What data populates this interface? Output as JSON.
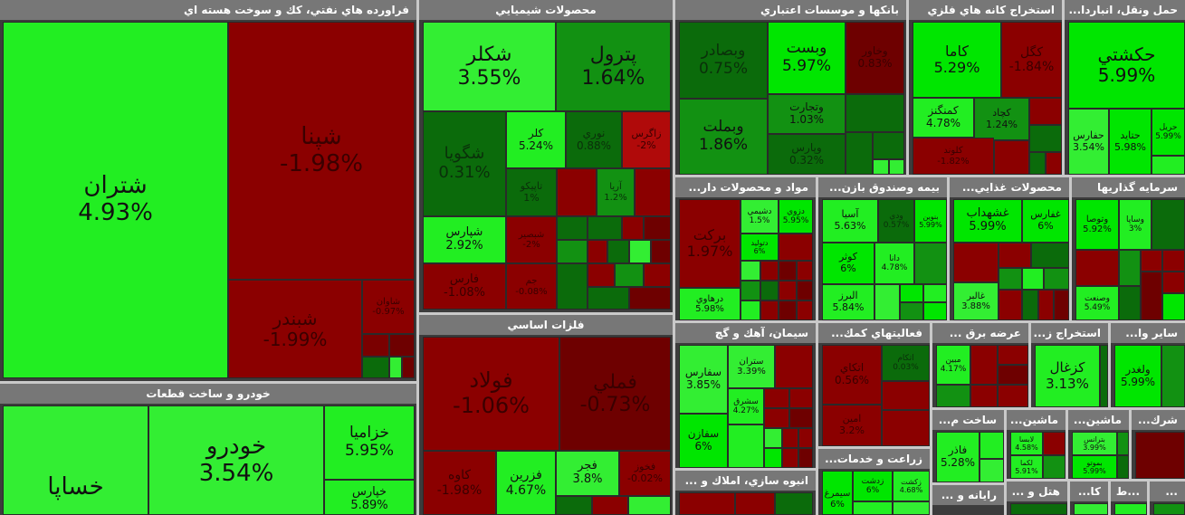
{
  "colors": {
    "strong_green": "#00e600",
    "green": "#33ee33",
    "mid_green": "#129112",
    "dark_green": "#0b6b0b",
    "red": "#8b0000",
    "dark_red": "#6e0000",
    "mid_red": "#b00a0a"
  },
  "chart_data": {
    "type": "treemap",
    "sectors": [
      {
        "name": "فراورده هاي نفتي، كك و سوخت هسته اي",
        "items": [
          {
            "symbol": "شتران",
            "change": "4.93%"
          },
          {
            "symbol": "شپنا",
            "change": "-1.98%"
          },
          {
            "symbol": "شبندر",
            "change": "-1.99%"
          },
          {
            "symbol": "شاوان",
            "change": "-0.97%"
          }
        ]
      },
      {
        "name": "خودرو و ساخت قطعات",
        "items": [
          {
            "symbol": "خساپا",
            "change": ""
          },
          {
            "symbol": "خودرو",
            "change": "3.54%"
          },
          {
            "symbol": "خزامیا",
            "change": "5.95%"
          },
          {
            "symbol": "خپارس",
            "change": "5.89%"
          }
        ]
      },
      {
        "name": "محصولات شيميايي",
        "items": [
          {
            "symbol": "شكلر",
            "change": "3.55%"
          },
          {
            "symbol": "پترول",
            "change": "1.64%"
          },
          {
            "symbol": "شگویا",
            "change": "0.31%"
          },
          {
            "symbol": "كلر",
            "change": "5.24%"
          },
          {
            "symbol": "نوري",
            "change": "0.88%"
          },
          {
            "symbol": "زاگرس",
            "change": "-2%"
          },
          {
            "symbol": "تاپیکو",
            "change": "1%"
          },
          {
            "symbol": "آريا",
            "change": "1.2%"
          },
          {
            "symbol": "شپارس",
            "change": "2.92%"
          },
          {
            "symbol": "شبصیر",
            "change": "-2%"
          },
          {
            "symbol": "فارس",
            "change": "-1.08%"
          },
          {
            "symbol": "جم",
            "change": "-0.08%"
          }
        ]
      },
      {
        "name": "فلزات اساسي",
        "items": [
          {
            "symbol": "فولاد",
            "change": "-1.06%"
          },
          {
            "symbol": "فملي",
            "change": "-0.73%"
          },
          {
            "symbol": "كاوه",
            "change": "-1.98%"
          },
          {
            "symbol": "فزرين",
            "change": "4.67%"
          },
          {
            "symbol": "فجر",
            "change": "3.8%"
          },
          {
            "symbol": "فخوز",
            "change": "-0.02%"
          }
        ]
      },
      {
        "name": "بانكها و موسسات اعتباري",
        "items": [
          {
            "symbol": "وبصادر",
            "change": "0.75%"
          },
          {
            "symbol": "وبست",
            "change": "5.97%"
          },
          {
            "symbol": "وبملت",
            "change": "1.86%"
          },
          {
            "symbol": "وتجارت",
            "change": "1.03%"
          },
          {
            "symbol": "وپارس",
            "change": "0.32%"
          },
          {
            "symbol": "وخاور",
            "change": "0.83%"
          }
        ]
      },
      {
        "name": "استخراج كانه هاي فلزي",
        "items": [
          {
            "symbol": "كاما",
            "change": "5.29%"
          },
          {
            "symbol": "كگل",
            "change": "-1.84%"
          },
          {
            "symbol": "كمنگنز",
            "change": "4.78%"
          },
          {
            "symbol": "كچاد",
            "change": "1.24%"
          },
          {
            "symbol": "كلوند",
            "change": "-1.82%"
          }
        ]
      },
      {
        "name": "حمل ونقل، انباردا...",
        "items": [
          {
            "symbol": "حكشتي",
            "change": "5.99%"
          },
          {
            "symbol": "حفارس",
            "change": "3.54%"
          },
          {
            "symbol": "حتايد",
            "change": "5.98%"
          },
          {
            "symbol": "حريل",
            "change": "5.99%"
          }
        ]
      },
      {
        "name": "مواد و محصولات دار...",
        "items": [
          {
            "symbol": "برکت",
            "change": "1.97%"
          },
          {
            "symbol": "دشيمي",
            "change": "1.5%"
          },
          {
            "symbol": "دزوي",
            "change": "5.95%"
          },
          {
            "symbol": "دتوليد",
            "change": "6%"
          },
          {
            "symbol": "درهاوي",
            "change": "5.98%"
          }
        ]
      },
      {
        "name": "بيمه وصندوق بازن...",
        "items": [
          {
            "symbol": "آسيا",
            "change": "5.63%"
          },
          {
            "symbol": "ودي",
            "change": "0.57%"
          },
          {
            "symbol": "بنوين",
            "change": "5.99%"
          },
          {
            "symbol": "كوثر",
            "change": "6%"
          },
          {
            "symbol": "دانا",
            "change": "4.78%"
          },
          {
            "symbol": "البرز",
            "change": "5.84%"
          }
        ]
      },
      {
        "name": "محصولات غذايي...",
        "items": [
          {
            "symbol": "غشهداب",
            "change": "5.99%"
          },
          {
            "symbol": "غفارس",
            "change": "6%"
          },
          {
            "symbol": "غالبر",
            "change": "3.88%"
          }
        ]
      },
      {
        "name": "سرمايه گذاريها",
        "items": [
          {
            "symbol": "وتوصا",
            "change": "5.92%"
          },
          {
            "symbol": "وساپا",
            "change": "3%"
          },
          {
            "symbol": "وصنعت",
            "change": "5.49%"
          }
        ]
      },
      {
        "name": "سيمان، آهك و گچ",
        "items": [
          {
            "symbol": "سفارس",
            "change": "3.85%"
          },
          {
            "symbol": "ستران",
            "change": "3.39%"
          },
          {
            "symbol": "سشرق",
            "change": "4.27%"
          },
          {
            "symbol": "سفازن",
            "change": "6%"
          }
        ]
      },
      {
        "name": "فعاليتهاي كمك...",
        "items": [
          {
            "symbol": "اتكاي",
            "change": "0.56%"
          },
          {
            "symbol": "اتكام",
            "change": "0.03%"
          },
          {
            "symbol": "امين",
            "change": "3.2%"
          }
        ]
      },
      {
        "name": "عرضه برق ...",
        "items": [
          {
            "symbol": "مبين",
            "change": "4.17%"
          }
        ]
      },
      {
        "name": "استخراج ز...",
        "items": [
          {
            "symbol": "كزغال",
            "change": "3.13%"
          }
        ]
      },
      {
        "name": "ساير وا...",
        "items": [
          {
            "symbol": "ولغدر",
            "change": "5.99%"
          }
        ]
      },
      {
        "name": "انبوه سازي، املاك و ...",
        "items": []
      },
      {
        "name": "زراعت و خدمات...",
        "items": [
          {
            "symbol": "زدشت",
            "change": "6%"
          },
          {
            "symbol": "سيمرغ",
            "change": "6%"
          },
          {
            "symbol": "زكشت",
            "change": "4.68%"
          }
        ]
      },
      {
        "name": "ساخت م...",
        "items": [
          {
            "symbol": "فاذر",
            "change": "5.28%"
          }
        ]
      },
      {
        "name": "ماشين...",
        "items": [
          {
            "symbol": "لابسا",
            "change": "4.58%"
          },
          {
            "symbol": "لکما",
            "change": "5.91%"
          }
        ]
      },
      {
        "name": "ماشين...",
        "items": [
          {
            "symbol": "بترانس",
            "change": "3.99%"
          },
          {
            "symbol": "بموتو",
            "change": "5.99%"
          }
        ]
      },
      {
        "name": "شرك...",
        "items": []
      },
      {
        "name": "رايانه و ...",
        "items": []
      },
      {
        "name": "هتل و ...",
        "items": []
      },
      {
        "name": "كا...",
        "items": []
      },
      {
        "name": "...ط",
        "items": []
      },
      {
        "name": "...",
        "items": []
      }
    ]
  }
}
